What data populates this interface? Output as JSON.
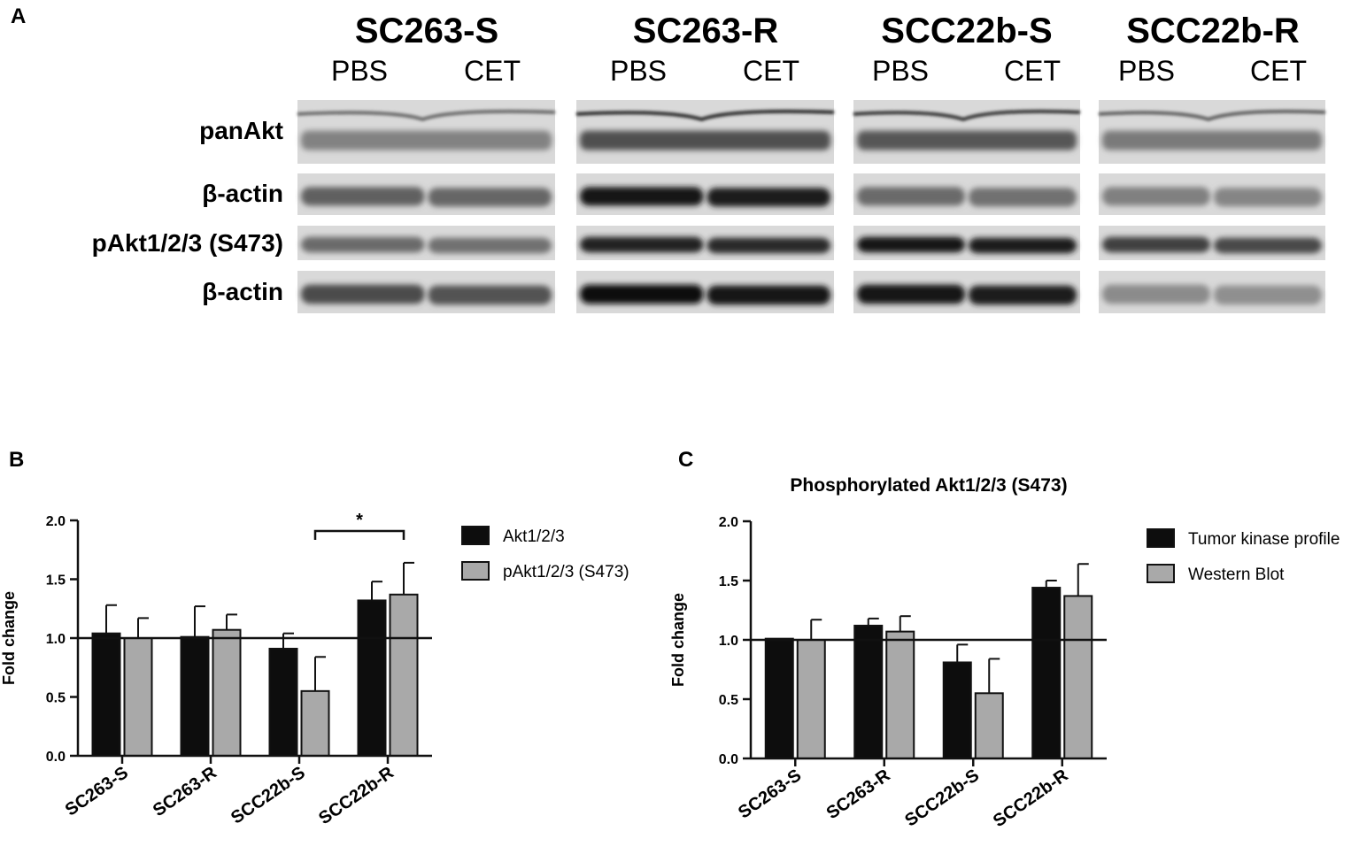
{
  "panel_letters": {
    "a": "A",
    "b": "B",
    "c": "C"
  },
  "blot": {
    "groups": [
      {
        "name": "SC263-S",
        "lanes": [
          "PBS",
          "CET"
        ]
      },
      {
        "name": "SC263-R",
        "lanes": [
          "PBS",
          "CET"
        ]
      },
      {
        "name": "SCC22b-S",
        "lanes": [
          "PBS",
          "CET"
        ]
      },
      {
        "name": "SCC22b-R",
        "lanes": [
          "PBS",
          "CET"
        ]
      }
    ],
    "rows": [
      "panAkt",
      "β-actin",
      "pAkt1/2/3 (S473)",
      "β-actin"
    ]
  },
  "chart_data": [
    {
      "type": "bar",
      "panel": "B",
      "title": "",
      "xlabel": "",
      "ylabel": "Fold change",
      "ylim": [
        0,
        2
      ],
      "yticks": [
        "0.0",
        "0.5",
        "1.0",
        "1.5",
        "2.0"
      ],
      "reference_line": 1.0,
      "categories": [
        "SC263-S",
        "SC263-R",
        "SCC22b-S",
        "SCC22b-R"
      ],
      "series": [
        {
          "name": "Akt1/2/3",
          "color": "#0d0d0d",
          "values": [
            1.04,
            1.01,
            0.91,
            1.32
          ],
          "errors": [
            0.24,
            0.26,
            0.13,
            0.16
          ]
        },
        {
          "name": "pAkt1/2/3 (S473)",
          "color": "#a9a9a9",
          "values": [
            1.0,
            1.07,
            0.55,
            1.37
          ],
          "errors": [
            0.17,
            0.13,
            0.29,
            0.27
          ]
        }
      ],
      "annotation": {
        "text": "*",
        "from": "SCC22b-S",
        "to": "SCC22b-R"
      },
      "legend": "right"
    },
    {
      "type": "bar",
      "panel": "C",
      "title": "Phosphorylated Akt1/2/3 (S473)",
      "xlabel": "",
      "ylabel": "Fold change",
      "ylim": [
        0,
        2
      ],
      "yticks": [
        "0.0",
        "0.5",
        "1.0",
        "1.5",
        "2.0"
      ],
      "reference_line": 1.0,
      "categories": [
        "SC263-S",
        "SC263-R",
        "SCC22b-S",
        "SCC22b-R"
      ],
      "series": [
        {
          "name": "Tumor kinase profile",
          "color": "#0d0d0d",
          "values": [
            1.01,
            1.12,
            0.81,
            1.44
          ],
          "errors": [
            0.0,
            0.06,
            0.15,
            0.06
          ]
        },
        {
          "name": "Western Blot",
          "color": "#a9a9a9",
          "values": [
            1.0,
            1.07,
            0.55,
            1.37
          ],
          "errors": [
            0.17,
            0.13,
            0.29,
            0.27
          ]
        }
      ],
      "legend": "right"
    }
  ]
}
